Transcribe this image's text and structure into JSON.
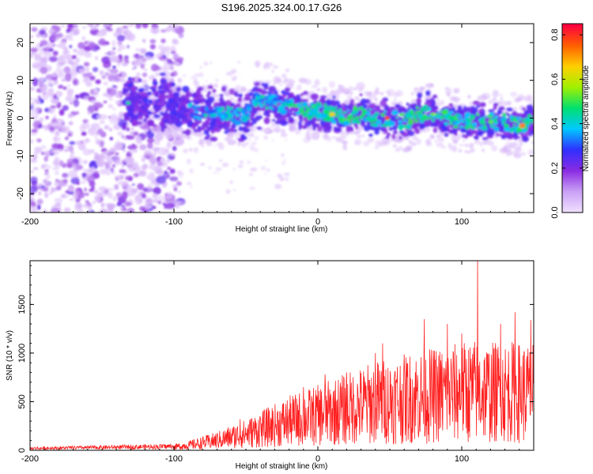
{
  "figure": {
    "title": "S196.2025.324.00.17.G26"
  },
  "chart_data": [
    {
      "type": "heatmap",
      "title": "",
      "xlabel": "Height of straight line (km)",
      "ylabel": "Frequency (Hz)",
      "xlim": [
        -200,
        150
      ],
      "ylim": [
        -25,
        25
      ],
      "xticks": [
        -200,
        -100,
        0,
        100
      ],
      "yticks": [
        -20,
        -10,
        0,
        10,
        20
      ],
      "colorbar": {
        "label": "Normalized spectral amplitude",
        "range": [
          0.0,
          0.85
        ],
        "ticks": [
          0.0,
          0.2,
          0.4,
          0.6,
          0.8
        ],
        "colors": [
          "#f0e0ff",
          "#c9a0f5",
          "#8a2be2",
          "#3030ff",
          "#00c8ff",
          "#00e070",
          "#a0f000",
          "#ffd000",
          "#ff6000",
          "#ff0040"
        ]
      },
      "ridge": {
        "x": [
          -200,
          -150,
          -130,
          -110,
          -100,
          -90,
          -80,
          -70,
          -60,
          -50,
          -45,
          -40,
          -30,
          -20,
          -10,
          0,
          10,
          20,
          30,
          40,
          50,
          60,
          70,
          80,
          90,
          100,
          110,
          120,
          130,
          140,
          150
        ],
        "y": [
          3,
          4,
          4,
          4,
          3,
          2,
          1,
          1,
          1,
          0,
          4,
          5,
          4,
          3,
          2,
          2,
          1,
          0,
          1,
          0,
          0,
          -1,
          1,
          1,
          0,
          -1,
          -1,
          -1,
          -1,
          -2,
          -1
        ]
      }
    },
    {
      "type": "line",
      "title": "",
      "xlabel": "Height of straight line (km)",
      "ylabel": "SNR (10 * v/v)",
      "xlim": [
        -200,
        150
      ],
      "ylim": [
        0,
        1950
      ],
      "xticks": [
        -200,
        -100,
        0,
        100
      ],
      "yticks": [
        0,
        500,
        1000,
        1500
      ],
      "series": [
        {
          "color": "#ff2020",
          "x": [
            -200,
            -150,
            -100,
            -90,
            -80,
            -70,
            -60,
            -50,
            -40,
            -30,
            -20,
            -10,
            0,
            10,
            20,
            30,
            40,
            50,
            60,
            70,
            80,
            90,
            100,
            110,
            120,
            130,
            140,
            150
          ],
          "y": [
            20,
            30,
            40,
            60,
            90,
            120,
            160,
            200,
            250,
            300,
            350,
            390,
            420,
            460,
            500,
            540,
            580,
            600,
            620,
            650,
            660,
            680,
            700,
            720,
            700,
            710,
            700,
            690
          ],
          "peaks": [
            [
              -54,
              320
            ],
            [
              -40,
              340
            ],
            [
              -10,
              650
            ],
            [
              5,
              780
            ],
            [
              20,
              800
            ],
            [
              40,
              1000
            ],
            [
              45,
              1100
            ],
            [
              62,
              900
            ],
            [
              74,
              1350
            ],
            [
              90,
              1300
            ],
            [
              100,
              1200
            ],
            [
              111,
              1950
            ],
            [
              127,
              1300
            ],
            [
              137,
              1420
            ],
            [
              148,
              1340
            ]
          ]
        }
      ]
    }
  ]
}
